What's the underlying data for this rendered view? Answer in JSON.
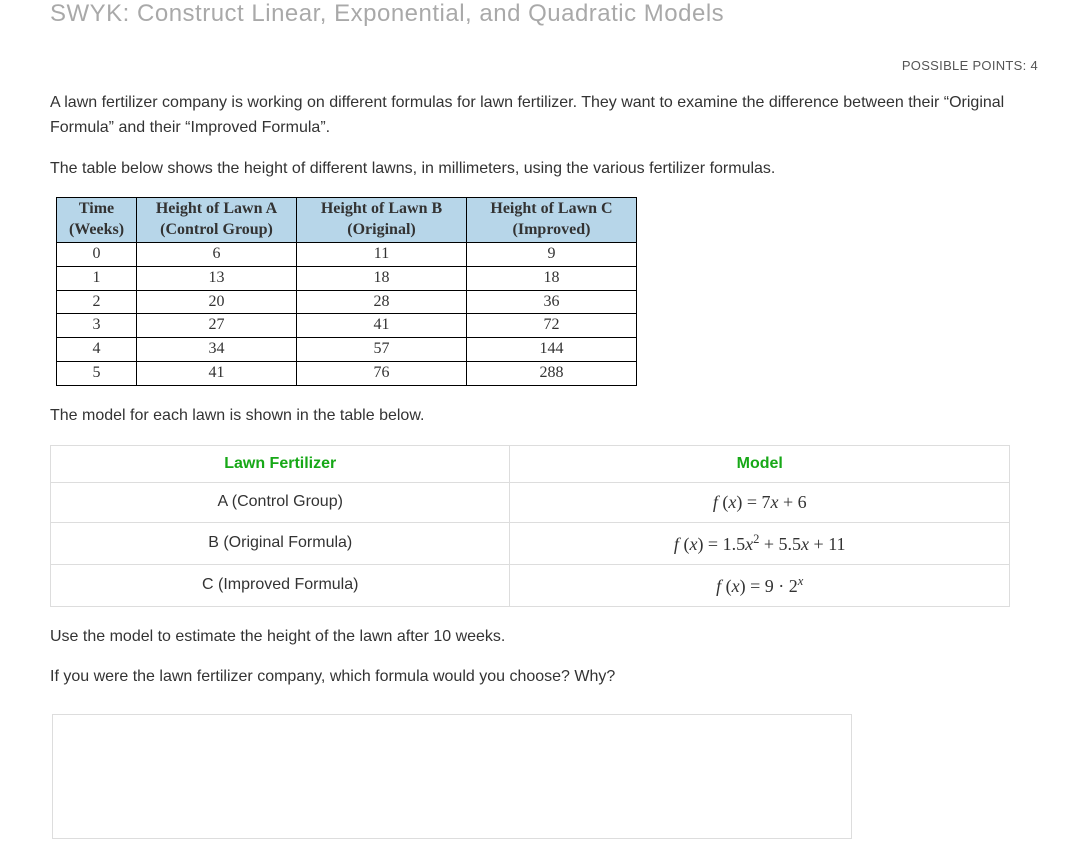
{
  "title": "SWYK: Construct Linear, Exponential, and Quadratic Models",
  "possible_points_label": "POSSIBLE POINTS: 4",
  "para1": "A lawn fertilizer company is working on different formulas for lawn fertilizer. They want to examine the difference between their “Original Formula” and their “Improved Formula”.",
  "para2": "The table below shows the height of different lawns, in millimeters, using the various fertilizer formulas.",
  "height_table": {
    "headers": {
      "time_l1": "Time",
      "time_l2": "(Weeks)",
      "a_l1": "Height of Lawn A",
      "a_l2": "(Control Group)",
      "b_l1": "Height of Lawn B",
      "b_l2": "(Original)",
      "c_l1": "Height of Lawn C",
      "c_l2": "(Improved)"
    },
    "header_bg": "#b7d6e9",
    "rows": [
      {
        "t": "0",
        "a": "6",
        "b": "11",
        "c": "9"
      },
      {
        "t": "1",
        "a": "13",
        "b": "18",
        "c": "18"
      },
      {
        "t": "2",
        "a": "20",
        "b": "28",
        "c": "36"
      },
      {
        "t": "3",
        "a": "27",
        "b": "41",
        "c": "72"
      },
      {
        "t": "4",
        "a": "34",
        "b": "57",
        "c": "144"
      },
      {
        "t": "5",
        "a": "41",
        "b": "76",
        "c": "288"
      }
    ]
  },
  "para3": "The model for each lawn is shown in the table below.",
  "model_table": {
    "header_fertilizer": "Lawn Fertilizer",
    "header_model": "Model",
    "header_color": "#17a817",
    "rows": [
      {
        "fert": "A (Control Group)",
        "model_html": "<span class='math-i'>f</span> (<span class='math-i'>x</span>) = 7<span class='math-i'>x</span> + 6"
      },
      {
        "fert": "B (Original Formula)",
        "model_html": "<span class='math-i'>f</span> (<span class='math-i'>x</span>) = 1.5<span class='math-i'>x</span><sup>2</sup> + 5.5<span class='math-i'>x</span> + 11"
      },
      {
        "fert": "C (Improved Formula)",
        "model_html": "<span class='math-i'>f</span> (<span class='math-i'>x</span>) = 9 · 2<sup><span class='math-i'>x</span></sup>"
      }
    ]
  },
  "para4": "Use the model to estimate the height of the lawn after 10 weeks.",
  "para5": "If you were the lawn fertilizer company, which formula would you choose? Why?"
}
